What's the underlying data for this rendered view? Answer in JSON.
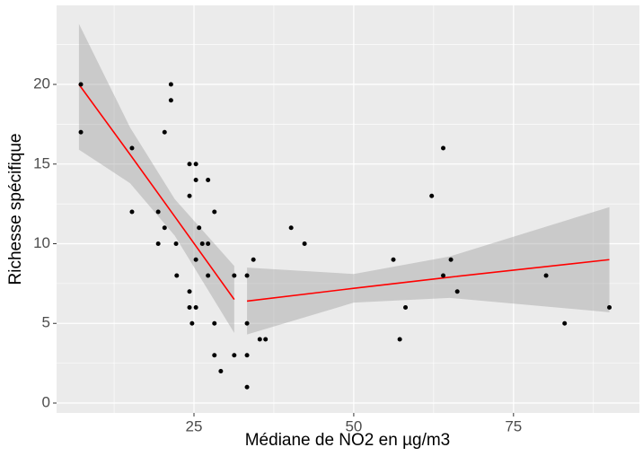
{
  "chart_data": {
    "type": "scatter",
    "x_label": "Médiane de NO2 en µg/m3",
    "y_label": "Richesse spécifique",
    "xlim": [
      3.5,
      94.7
    ],
    "ylim": [
      -0.62,
      24.96
    ],
    "xticks": [
      25,
      50,
      75
    ],
    "yticks": [
      0,
      5,
      10,
      15,
      20
    ],
    "xminor": [
      12.5,
      37.5,
      62.5,
      87.5
    ],
    "yminor": [
      2.5,
      7.5,
      12.5,
      17.5,
      22.5
    ],
    "grid": true,
    "point_color": "#000000",
    "line_color": "#ff0000",
    "band_color": "#999999",
    "x": [
      7.3,
      7.3,
      15.3,
      15.3,
      19.4,
      19.4,
      20.4,
      20.4,
      21.4,
      21.4,
      22.2,
      22.3,
      24.3,
      24.3,
      24.3,
      24.3,
      24.7,
      25.3,
      25.3,
      25.3,
      25.3,
      25.8,
      26.3,
      27.2,
      27.2,
      27.2,
      28.2,
      28.2,
      28.2,
      29.2,
      31.3,
      31.3,
      33.3,
      33.3,
      33.3,
      33.3,
      34.3,
      35.3,
      36.2,
      40.2,
      42.3,
      56.2,
      57.2,
      58.1,
      62.2,
      64,
      64,
      65.2,
      66.2,
      80.1,
      83,
      90
    ],
    "y": [
      20,
      17,
      16,
      12,
      12,
      10,
      11,
      17,
      20,
      19,
      10,
      8,
      15,
      13,
      7,
      6,
      5,
      15,
      14,
      9,
      6,
      11,
      10,
      10,
      14,
      8,
      12,
      5,
      3,
      2,
      8,
      3,
      8,
      5,
      3,
      1,
      9,
      4,
      4,
      11,
      10,
      9,
      4,
      6,
      13,
      16,
      8,
      9,
      7,
      8,
      5,
      6
    ],
    "fits": [
      {
        "x": [
          7,
          15,
          22,
          31.3
        ],
        "y": [
          20,
          15.6,
          11.7,
          6.5
        ],
        "lower": [
          15.9,
          13.8,
          10.5,
          4.4
        ],
        "upper": [
          23.8,
          17.3,
          12.8,
          8.6
        ]
      },
      {
        "x": [
          33.3,
          50,
          65,
          90
        ],
        "y": [
          6.4,
          7.2,
          7.9,
          9.0
        ],
        "lower": [
          4.3,
          6.3,
          6.6,
          5.7
        ],
        "upper": [
          8.5,
          8.1,
          9.2,
          12.3
        ]
      }
    ]
  }
}
